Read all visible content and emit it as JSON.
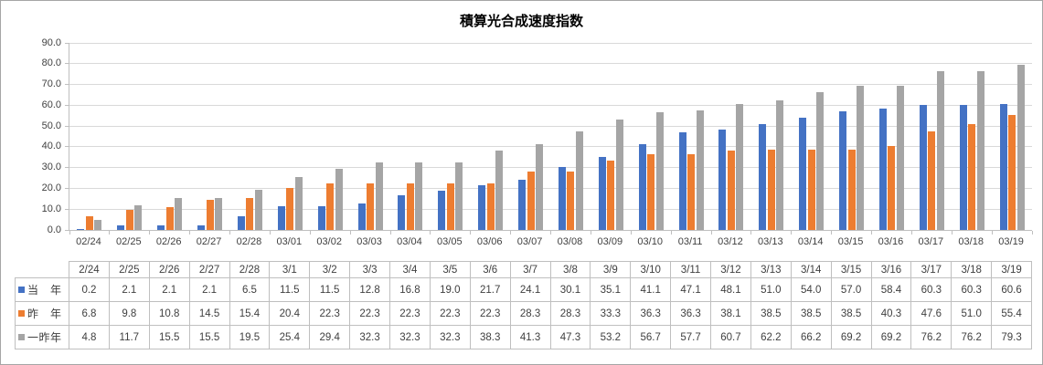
{
  "chart_data": {
    "type": "bar",
    "title": "積算光合成速度指数",
    "categories": [
      "02/24",
      "02/25",
      "02/26",
      "02/27",
      "02/28",
      "03/01",
      "03/02",
      "03/03",
      "03/04",
      "03/05",
      "03/06",
      "03/07",
      "03/08",
      "03/09",
      "03/10",
      "03/11",
      "03/12",
      "03/13",
      "03/14",
      "03/15",
      "03/16",
      "03/17",
      "03/18",
      "03/19"
    ],
    "series": [
      {
        "id": "this-year",
        "name": "当　年",
        "color": "#4472C4",
        "values": [
          0.2,
          2.1,
          2.1,
          2.1,
          6.5,
          11.5,
          11.5,
          12.8,
          16.8,
          19.0,
          21.7,
          24.1,
          30.1,
          35.1,
          41.1,
          47.1,
          48.1,
          51.0,
          54.0,
          57.0,
          58.4,
          60.3,
          60.3,
          60.6
        ]
      },
      {
        "id": "last-year",
        "name": "昨　年",
        "color": "#ED7D31",
        "values": [
          6.8,
          9.8,
          10.8,
          14.5,
          15.4,
          20.4,
          22.3,
          22.3,
          22.3,
          22.3,
          22.3,
          28.3,
          28.3,
          33.3,
          36.3,
          36.3,
          38.1,
          38.5,
          38.5,
          38.5,
          40.3,
          47.6,
          51.0,
          55.4
        ]
      },
      {
        "id": "two-years-ago",
        "name": "一昨年",
        "color": "#A5A5A5",
        "values": [
          4.8,
          11.7,
          15.5,
          15.5,
          19.5,
          25.4,
          29.4,
          32.3,
          32.3,
          32.3,
          38.3,
          41.3,
          47.3,
          53.2,
          56.7,
          57.7,
          60.7,
          62.2,
          66.2,
          69.2,
          69.2,
          76.2,
          76.2,
          79.3
        ]
      }
    ],
    "ylim": [
      0,
      90
    ],
    "y_tick_step": 10,
    "y_tick_format_decimals": 1,
    "grid": true,
    "legend_position": "data-table-keys"
  },
  "data_table": {
    "headers": [
      "2/24",
      "2/25",
      "2/26",
      "2/27",
      "2/28",
      "3/1",
      "3/2",
      "3/3",
      "3/4",
      "3/5",
      "3/6",
      "3/7",
      "3/8",
      "3/9",
      "3/10",
      "3/11",
      "3/12",
      "3/13",
      "3/14",
      "3/15",
      "3/16",
      "3/17",
      "3/18",
      "3/19"
    ]
  },
  "colors": {
    "series_blue": "#4472C4",
    "series_orange": "#ED7D31",
    "series_gray": "#A5A5A5",
    "gridline": "#D9D9D9",
    "axis_line": "#BFBFBF",
    "table_border": "#BFBFBF",
    "label_text": "#404040",
    "title_text": "#000000"
  }
}
